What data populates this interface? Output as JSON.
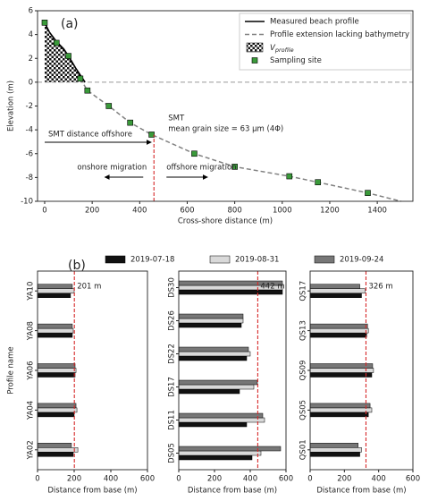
{
  "chart_data": [
    {
      "type": "line",
      "label": "(a)",
      "xlabel": "Cross-shore distance (m)",
      "ylabel": "Elevation (m)",
      "xlim": [
        -30,
        1550
      ],
      "ylim": [
        -10,
        6
      ],
      "xticks": [
        0,
        200,
        400,
        600,
        800,
        1000,
        1200,
        1400
      ],
      "yticks": [
        -10,
        -8,
        -6,
        -4,
        -2,
        0,
        2,
        4,
        6
      ],
      "hline": 0,
      "series": [
        {
          "name": "Measured beach profile",
          "color": "#000000",
          "style": "solid",
          "x": [
            0,
            20,
            50,
            80,
            100,
            130,
            150,
            170
          ],
          "values": [
            5,
            4.2,
            3.4,
            2.8,
            2.2,
            1.2,
            0.6,
            0
          ]
        },
        {
          "name": "Profile extension lacking bathymetry",
          "color": "#808080",
          "style": "dashed",
          "x": [
            150,
            180,
            270,
            360,
            450,
            630,
            800,
            1030,
            1150,
            1360,
            1500
          ],
          "values": [
            0.3,
            -0.7,
            -2,
            -3.4,
            -4.4,
            -6,
            -7.1,
            -7.9,
            -8.4,
            -9.3,
            -10
          ]
        },
        {
          "name": "Sampling site",
          "color": "#3a9a3a",
          "style": "marker",
          "x": [
            0,
            50,
            100,
            150,
            180,
            270,
            360,
            450,
            630,
            800,
            1030,
            1150,
            1360
          ],
          "values": [
            5,
            3.3,
            2.2,
            0.3,
            -0.7,
            -2,
            -3.4,
            -4.4,
            -6,
            -7.1,
            -7.9,
            -8.4,
            -9.3
          ]
        }
      ],
      "area": {
        "name": "V",
        "subscript": "profile"
      },
      "smt_x": 460,
      "annotations": {
        "smt": "SMT",
        "grain": "mean grain size = 63 μm (4Φ)",
        "distance": "SMT distance offshore",
        "onshore": "onshore migration",
        "offshore": "offshore migration"
      }
    },
    {
      "type": "bar",
      "orientation": "horizontal",
      "label": "(b)",
      "xlabel": "Distance from base (m)",
      "ylabel": "Profile name",
      "xlim": [
        0,
        600
      ],
      "xticks": [
        0,
        200,
        400,
        600
      ],
      "series": [
        {
          "name": "2019-07-18",
          "color": "#111111"
        },
        {
          "name": "2019-08-31",
          "color": "#d9d9d9"
        },
        {
          "name": "2019-09-24",
          "color": "#777777"
        }
      ],
      "panels": [
        {
          "categories": [
            "YA02",
            "YA04",
            "YA06",
            "YA08",
            "YA10"
          ],
          "values": [
            [
              195,
              200,
              205,
              190,
              180
            ],
            [
              220,
              215,
              210,
              195,
              200
            ],
            [
              185,
              210,
              205,
              190,
              190
            ]
          ],
          "ref_line": 201,
          "ref_label": "201 m"
        },
        {
          "categories": [
            "DS05",
            "DS11",
            "DS17",
            "DS22",
            "DS26",
            "DS30"
          ],
          "values": [
            [
              410,
              380,
              340,
              380,
              350,
              580
            ],
            [
              460,
              480,
              420,
              400,
              360,
              580
            ],
            [
              570,
              470,
              440,
              390,
              360,
              580
            ]
          ],
          "ref_line": 442,
          "ref_label": "442 m"
        },
        {
          "categories": [
            "QS01",
            "QS05",
            "QS09",
            "QS13",
            "QS17"
          ],
          "values": [
            [
              290,
              340,
              360,
              330,
              300
            ],
            [
              300,
              360,
              370,
              340,
              320
            ],
            [
              280,
              350,
              365,
              335,
              290
            ]
          ],
          "ref_line": 326,
          "ref_label": "326 m"
        }
      ]
    }
  ]
}
